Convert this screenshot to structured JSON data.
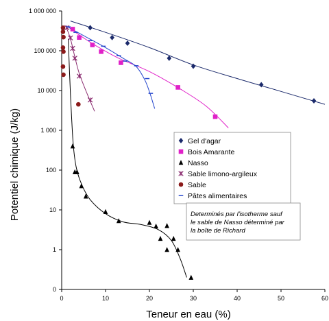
{
  "chart_data": {
    "type": "scatter",
    "xlabel": "Teneur en eau (%)",
    "ylabel": "Potentiel chimique (J/kg)",
    "xlim": [
      0,
      60
    ],
    "ylim": [
      0,
      1000000
    ],
    "y_scale": "log",
    "x_ticks": [
      "0",
      "10",
      "20",
      "30",
      "40",
      "50",
      "60"
    ],
    "y_ticks": [
      "1 000 000",
      "100 000",
      "10 000",
      "1 000",
      "100",
      "10",
      "1",
      "0"
    ],
    "grid": false,
    "legend_position": "right-middle",
    "series": [
      {
        "name": "Gel d'agar",
        "color": "#1b2a6b",
        "marker": "diamond",
        "points": [
          [
            6.5,
            380000
          ],
          [
            11.5,
            215000
          ],
          [
            15,
            155000
          ],
          [
            24.5,
            65000
          ],
          [
            30,
            41000
          ],
          [
            45.5,
            14000
          ],
          [
            57.5,
            5500
          ]
        ],
        "curve": [
          [
            2,
            560000
          ],
          [
            10,
            290000
          ],
          [
            20,
            120000
          ],
          [
            30,
            44000
          ],
          [
            40,
            20000
          ],
          [
            50,
            9500
          ],
          [
            60,
            4500
          ]
        ]
      },
      {
        "name": "Bois Amarante",
        "color": "#e020c8",
        "marker": "square",
        "points": [
          [
            2.5,
            350000
          ],
          [
            4,
            215000
          ],
          [
            7,
            140000
          ],
          [
            9,
            95000
          ],
          [
            13.5,
            50000
          ],
          [
            26.5,
            12000
          ],
          [
            35,
            2200
          ]
        ],
        "curve": [
          [
            1.5,
            400000
          ],
          [
            4,
            250000
          ],
          [
            8,
            130000
          ],
          [
            13,
            65000
          ],
          [
            20,
            30000
          ],
          [
            27,
            11000
          ],
          [
            33,
            4000
          ],
          [
            38,
            1150
          ]
        ]
      },
      {
        "name": "Nasso",
        "color": "#000000",
        "marker": "triangle",
        "points": [
          [
            2.5,
            400
          ],
          [
            3,
            90
          ],
          [
            3.5,
            90
          ],
          [
            4.5,
            40
          ],
          [
            5.5,
            22
          ],
          [
            10,
            9
          ],
          [
            13,
            5.3
          ],
          [
            20,
            4.8
          ],
          [
            21.5,
            3.9
          ],
          [
            22.5,
            1.9
          ],
          [
            24,
            4
          ],
          [
            24,
            1
          ],
          [
            25.5,
            1.9
          ],
          [
            26.5,
            1
          ],
          [
            29.5,
            0.2
          ]
        ],
        "curve": [
          [
            1.5,
            200000
          ],
          [
            2,
            8000
          ],
          [
            2.6,
            500
          ],
          [
            3.3,
            120
          ],
          [
            4.5,
            45
          ],
          [
            6.5,
            18
          ],
          [
            10,
            8
          ],
          [
            14,
            5
          ],
          [
            18,
            4.3
          ],
          [
            22,
            3.2
          ],
          [
            25,
            1.7
          ],
          [
            27,
            0.6
          ],
          [
            28.5,
            0.2
          ]
        ]
      },
      {
        "name": "Sable limono-argileux",
        "color": "#8a2b6f",
        "marker": "x",
        "points": [
          [
            1.2,
            380000
          ],
          [
            2,
            210000
          ],
          [
            2.5,
            115000
          ],
          [
            3,
            65000
          ],
          [
            4,
            23000
          ],
          [
            6.5,
            5800
          ]
        ],
        "curve": [
          [
            1,
            400000
          ],
          [
            2,
            200000
          ],
          [
            3,
            70000
          ],
          [
            4,
            27000
          ],
          [
            5.5,
            10000
          ],
          [
            7.5,
            3000
          ]
        ]
      },
      {
        "name": "Sable",
        "color": "#8b1a1a",
        "marker": "circle",
        "points": [
          [
            0.3,
            380000
          ],
          [
            0.3,
            300000
          ],
          [
            0.4,
            220000
          ],
          [
            0.3,
            120000
          ],
          [
            0.4,
            95000
          ],
          [
            0.3,
            40000
          ],
          [
            0.4,
            25000
          ],
          [
            3.8,
            4500
          ]
        ]
      },
      {
        "name": "Pâtes alimentaires",
        "color": "#2244cc",
        "marker": "dash",
        "points": [
          [
            1.5,
            400000
          ],
          [
            3.2,
            290000
          ],
          [
            6.5,
            180000
          ],
          [
            9.5,
            130000
          ],
          [
            13,
            75000
          ],
          [
            14.5,
            55000
          ],
          [
            17,
            42000
          ],
          [
            19.5,
            20000
          ],
          [
            20.3,
            8500
          ]
        ],
        "curve": [
          [
            1,
            420000
          ],
          [
            5,
            240000
          ],
          [
            10,
            120000
          ],
          [
            14,
            65000
          ],
          [
            17,
            40000
          ],
          [
            19,
            18000
          ],
          [
            20.2,
            8000
          ],
          [
            21.2,
            3500
          ]
        ]
      }
    ],
    "annotation": "Determinés par l'isotherme sauf le sable de Nasso déterminé par la boîte de Richard"
  }
}
